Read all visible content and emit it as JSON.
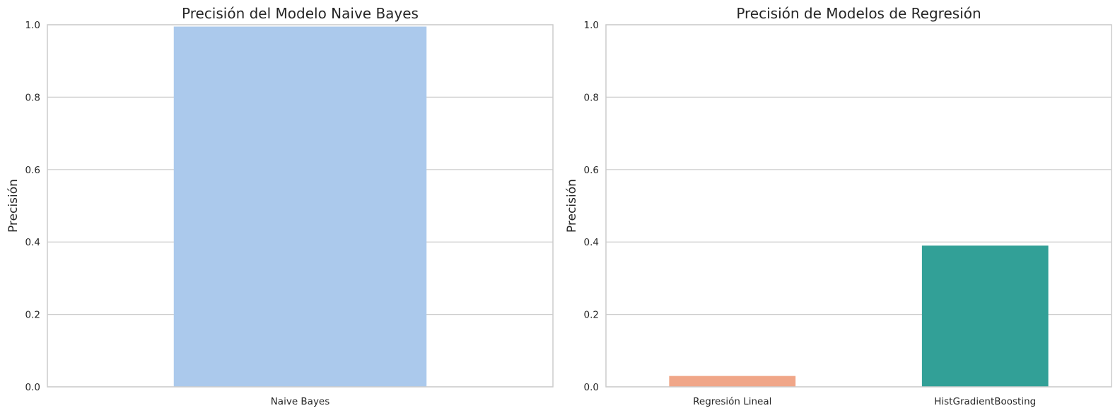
{
  "chart_data": [
    {
      "type": "bar",
      "title": "Precisión del Modelo Naive Bayes",
      "xlabel": "",
      "ylabel": "Precisión",
      "categories": [
        "Naive Bayes"
      ],
      "values": [
        0.995
      ],
      "colors": [
        "#abc9ec"
      ],
      "ylim": [
        0,
        1
      ],
      "yticks": [
        0.0,
        0.2,
        0.4,
        0.6,
        0.8,
        1.0
      ],
      "ytick_labels": [
        "0.0",
        "0.2",
        "0.4",
        "0.6",
        "0.8",
        "1.0"
      ],
      "grid": true
    },
    {
      "type": "bar",
      "title": "Precisión de Modelos de Regresión",
      "xlabel": "",
      "ylabel": "Precisión",
      "categories": [
        "Regresión Lineal",
        "HistGradientBoosting"
      ],
      "values": [
        0.03,
        0.39
      ],
      "colors": [
        "#f0a688",
        "#32a097"
      ],
      "ylim": [
        0,
        1
      ],
      "yticks": [
        0.0,
        0.2,
        0.4,
        0.6,
        0.8,
        1.0
      ],
      "ytick_labels": [
        "0.0",
        "0.2",
        "0.4",
        "0.6",
        "0.8",
        "1.0"
      ],
      "grid": true
    }
  ]
}
